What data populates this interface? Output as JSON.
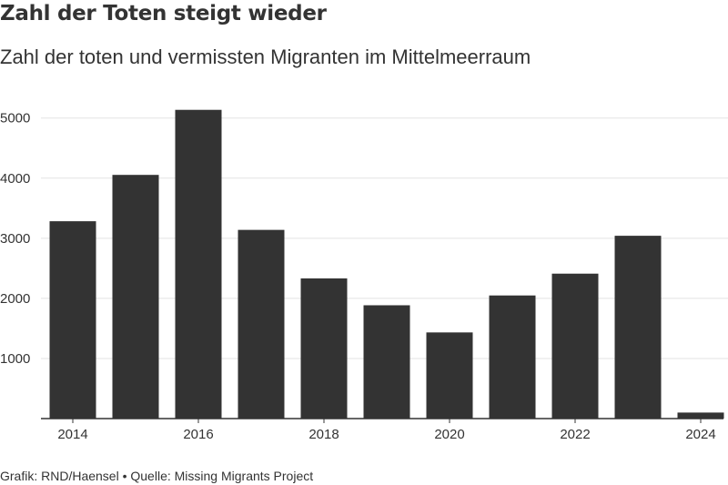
{
  "header": {
    "title": "Zahl der Toten steigt wieder",
    "subtitle": "Zahl der toten und vermissten Migranten im Mittelmeerraum"
  },
  "footer": {
    "credit": "Grafik: RND/Haensel • Quelle: Missing Migrants Project"
  },
  "colors": {
    "bar": "#333333",
    "grid": "#e3e3e3",
    "axis": "#333333"
  },
  "chart_data": {
    "type": "bar",
    "title": "Zahl der Toten steigt wieder",
    "subtitle": "Zahl der toten und vermissten Migranten im Mittelmeerraum",
    "xlabel": "",
    "ylabel": "",
    "categories": [
      "2014",
      "2015",
      "2016",
      "2017",
      "2018",
      "2019",
      "2020",
      "2021",
      "2022",
      "2023",
      "2024"
    ],
    "values": [
      3283,
      4054,
      5136,
      3139,
      2332,
      1885,
      1433,
      2048,
      2411,
      3041,
      100
    ],
    "x_tick_labels": [
      "2014",
      "2016",
      "2018",
      "2020",
      "2022",
      "2024"
    ],
    "y_ticks": [
      1000,
      2000,
      3000,
      4000,
      5000
    ],
    "ylim": [
      0,
      5500
    ],
    "grid": true,
    "legend": "none"
  }
}
